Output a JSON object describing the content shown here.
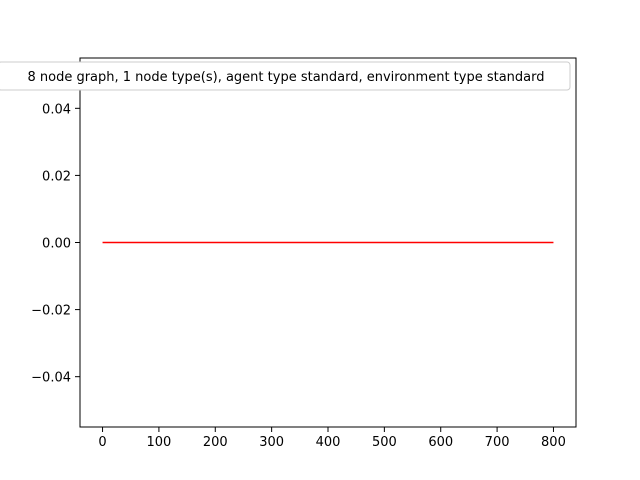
{
  "chart_data": {
    "type": "line",
    "title": "",
    "xlabel": "",
    "ylabel": "",
    "xlim": [
      -40,
      840
    ],
    "ylim": [
      -0.055,
      0.055
    ],
    "x_ticks": [
      0,
      100,
      200,
      300,
      400,
      500,
      600,
      700,
      800
    ],
    "x_tick_labels": [
      "0",
      "100",
      "200",
      "300",
      "400",
      "500",
      "600",
      "700",
      "800"
    ],
    "y_ticks": [
      -0.04,
      -0.02,
      0.0,
      0.02,
      0.04
    ],
    "y_tick_labels": [
      "−0.04",
      "−0.02",
      "0.00",
      "0.02",
      "0.04"
    ],
    "grid": false,
    "legend_placement": "top",
    "series": [
      {
        "name": "8 node graph, 1 node type(s), agent type standard, environment type standard",
        "color": "#ff0000",
        "x": [
          0,
          800
        ],
        "y": [
          0,
          0
        ]
      }
    ]
  }
}
